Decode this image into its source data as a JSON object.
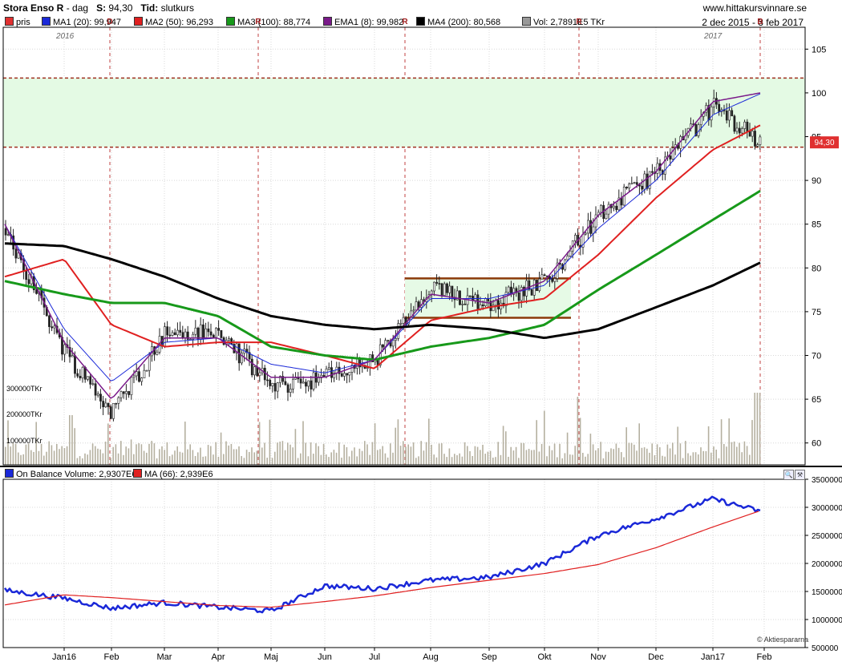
{
  "header": {
    "name": "Stora Enso R",
    "period": "dag",
    "s_label": "S:",
    "s_value": "94,30",
    "tid_label": "Tid:",
    "tid_value": "slutkurs",
    "site": "www.hittakursvinnare.se",
    "range": "2 dec 2015 - 3 feb 2017"
  },
  "legend": [
    {
      "label": "pris",
      "color": "#e03030"
    },
    {
      "label": "MA1 (20): 99,947",
      "color": "#1a28d8"
    },
    {
      "label": "MA2 (50): 96,293",
      "color": "#e02020"
    },
    {
      "label": "MA3 (100): 88,774",
      "color": "#17991a"
    },
    {
      "label": "EMA1 (8): 99,982",
      "color": "#7a1a8a"
    },
    {
      "label": "MA4 (200): 80,568",
      "color": "#000000"
    },
    {
      "label": "Vol: 2,7891E5 TKr",
      "color": "#999999"
    }
  ],
  "price_label": "94,30",
  "year_labels": [
    "2016",
    "2017"
  ],
  "volume_ticks": [
    "300000TKr",
    "200000TKr",
    "100000TKr"
  ],
  "lower_legend": [
    {
      "label": "On Balance Volume: 2,9307E6",
      "color": "#1a28d8"
    },
    {
      "label": "MA (66): 2,939E6",
      "color": "#e02020"
    }
  ],
  "watermark": "Aktiespararna",
  "chart_data": [
    {
      "type": "line",
      "title": "Stora Enso R",
      "x_labels": [
        "Jan16",
        "Feb",
        "Mar",
        "Apr",
        "Maj",
        "Jun",
        "Jul",
        "Aug",
        "Sep",
        "Okt",
        "Nov",
        "Dec",
        "Jan17",
        "Feb"
      ],
      "y_ticks": [
        105,
        100,
        95,
        90,
        85,
        80,
        75,
        70,
        65,
        60
      ],
      "ylim": [
        57.5,
        107.5
      ],
      "grid": true,
      "zone": [
        93.8,
        101.7
      ],
      "channel": {
        "upper": 78.8,
        "lower": 74.3,
        "x_start": "Jul",
        "x_end": "Okt"
      },
      "price_x": [
        "2 dec",
        "Jan16",
        "Feb",
        "Mar",
        "Apr",
        "Maj",
        "Jun",
        "Jul",
        "Aug",
        "Sep",
        "Okt",
        "Nov",
        "Dec",
        "Jan17",
        "Feb"
      ],
      "series": [
        {
          "name": "pris",
          "values": [
            84.5,
            70.5,
            63.5,
            72.5,
            72.5,
            66.5,
            67.5,
            69.5,
            77.5,
            76.0,
            78.5,
            86.0,
            91.0,
            98.5,
            94.3
          ]
        },
        {
          "name": "MA1 (20)",
          "values": [
            85.0,
            73.0,
            67.0,
            71.5,
            72.0,
            69.0,
            68.0,
            69.5,
            76.5,
            76.5,
            78.0,
            84.5,
            90.0,
            97.5,
            99.9
          ]
        },
        {
          "name": "MA2 (50)",
          "values": [
            79.0,
            81.0,
            73.5,
            71.0,
            71.5,
            71.5,
            70.0,
            68.5,
            74.0,
            75.5,
            76.5,
            81.5,
            88.0,
            93.5,
            96.3
          ]
        },
        {
          "name": "MA3 (100)",
          "values": [
            78.5,
            77.0,
            76.0,
            76.0,
            74.5,
            71.0,
            70.0,
            69.5,
            71.0,
            72.0,
            73.5,
            77.5,
            81.5,
            85.5,
            88.8
          ]
        },
        {
          "name": "EMA1 (8)",
          "values": [
            85.0,
            71.5,
            65.0,
            72.0,
            72.0,
            67.5,
            67.5,
            69.5,
            77.0,
            76.0,
            78.5,
            86.0,
            91.0,
            99.0,
            100.0
          ]
        },
        {
          "name": "MA4 (200)",
          "values": [
            82.8,
            82.5,
            81.0,
            79.0,
            76.5,
            74.5,
            73.5,
            73.0,
            73.5,
            73.0,
            72.0,
            73.0,
            75.5,
            78.0,
            80.6
          ]
        }
      ]
    },
    {
      "type": "line",
      "title": "On Balance Volume",
      "x_labels": [
        "Jan16",
        "Feb",
        "Mar",
        "Apr",
        "Maj",
        "Jun",
        "Jul",
        "Aug",
        "Sep",
        "Okt",
        "Nov",
        "Dec",
        "Jan17",
        "Feb"
      ],
      "y_ticks": [
        3500000,
        3000000,
        2500000,
        2000000,
        1500000,
        1000000,
        500000
      ],
      "ylim": [
        500000,
        3500000
      ],
      "x": [
        "2 dec",
        "Jan16",
        "Feb",
        "Mar",
        "Apr",
        "Maj",
        "Jun",
        "Jul",
        "Aug",
        "Sep",
        "Okt",
        "Nov",
        "Dec",
        "Jan17",
        "Feb"
      ],
      "series": [
        {
          "name": "On Balance Volume",
          "values": [
            1520000,
            1380000,
            1200000,
            1300000,
            1220000,
            1150000,
            1600000,
            1550000,
            1700000,
            1750000,
            2000000,
            2500000,
            2800000,
            3150000,
            2930700
          ]
        },
        {
          "name": "MA (66)",
          "values": [
            1260000,
            1440000,
            1390000,
            1320000,
            1250000,
            1220000,
            1320000,
            1420000,
            1570000,
            1700000,
            1820000,
            1980000,
            2280000,
            2650000,
            2939000
          ]
        }
      ]
    }
  ]
}
